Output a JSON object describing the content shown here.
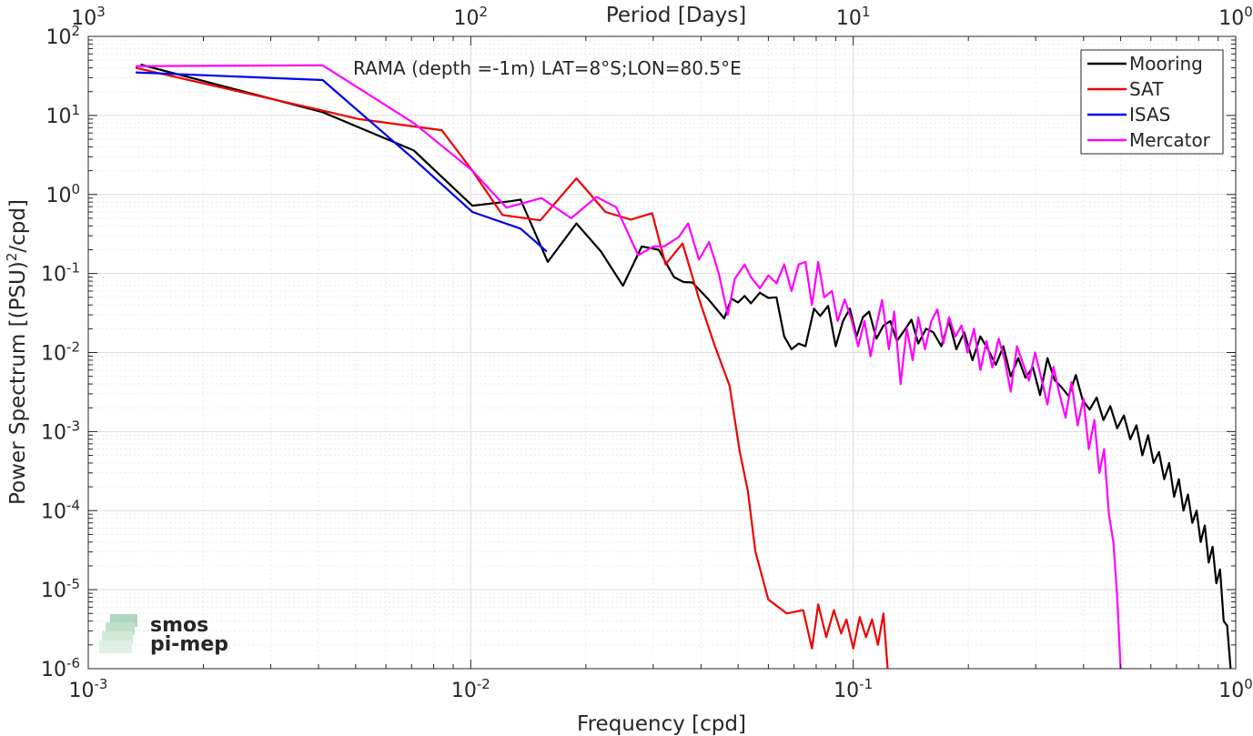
{
  "chart_data": {
    "type": "line",
    "title": "RAMA (depth =-1m) LAT=8°S;LON=80.5°E",
    "xlabel": "Frequency [cpd]",
    "ylabel": "Power Spectrum [(PSU)",
    "ylabel_sup": "2",
    "ylabel_tail": "/cpd]",
    "x2label": "Period [Days]",
    "xscale": "log",
    "yscale": "log",
    "xlim": [
      0.001,
      1
    ],
    "ylim": [
      1e-06,
      100
    ],
    "grid": true,
    "minor_grid": true,
    "legend_position": "top-right",
    "x_ticks": [
      {
        "value": 0.001,
        "base": "10",
        "exp": "-3"
      },
      {
        "value": 0.01,
        "base": "10",
        "exp": "-2"
      },
      {
        "value": 0.1,
        "base": "10",
        "exp": "-1"
      },
      {
        "value": 1,
        "base": "10",
        "exp": "0"
      }
    ],
    "y_ticks": [
      {
        "value": 1e-06,
        "base": "10",
        "exp": "-6"
      },
      {
        "value": 1e-05,
        "base": "10",
        "exp": "-5"
      },
      {
        "value": 0.0001,
        "base": "10",
        "exp": "-4"
      },
      {
        "value": 0.001,
        "base": "10",
        "exp": "-3"
      },
      {
        "value": 0.01,
        "base": "10",
        "exp": "-2"
      },
      {
        "value": 0.1,
        "base": "10",
        "exp": "-1"
      },
      {
        "value": 1,
        "base": "10",
        "exp": "0"
      },
      {
        "value": 10,
        "base": "10",
        "exp": "1"
      },
      {
        "value": 100,
        "base": "10",
        "exp": "2"
      }
    ],
    "x2_ticks": [
      {
        "value": 0.001,
        "base": "10",
        "exp": "3"
      },
      {
        "value": 0.01,
        "base": "10",
        "exp": "2"
      },
      {
        "value": 0.1,
        "base": "10",
        "exp": "1"
      },
      {
        "value": 1,
        "base": "10",
        "exp": "0"
      }
    ],
    "series": [
      {
        "name": "Mooring",
        "color": "#000000",
        "points": [
          [
            0.00137,
            44
          ],
          [
            0.0041,
            11
          ],
          [
            0.0071,
            3.6
          ],
          [
            0.0101,
            0.72
          ],
          [
            0.0127,
            0.82
          ],
          [
            0.0135,
            0.86
          ],
          [
            0.0159,
            0.14
          ],
          [
            0.0189,
            0.43
          ],
          [
            0.0219,
            0.19
          ],
          [
            0.025,
            0.07
          ],
          [
            0.028,
            0.22
          ],
          [
            0.031,
            0.2
          ],
          [
            0.034,
            0.09
          ],
          [
            0.036,
            0.078
          ],
          [
            0.038,
            0.077
          ],
          [
            0.042,
            0.046
          ],
          [
            0.046,
            0.027
          ],
          [
            0.048,
            0.048
          ],
          [
            0.05,
            0.043
          ],
          [
            0.052,
            0.052
          ],
          [
            0.054,
            0.042
          ],
          [
            0.057,
            0.057
          ],
          [
            0.06,
            0.049
          ],
          [
            0.063,
            0.05
          ],
          [
            0.066,
            0.016
          ],
          [
            0.069,
            0.011
          ],
          [
            0.072,
            0.013
          ],
          [
            0.075,
            0.012
          ],
          [
            0.079,
            0.036
          ],
          [
            0.082,
            0.029
          ],
          [
            0.086,
            0.039
          ],
          [
            0.09,
            0.012
          ],
          [
            0.094,
            0.025
          ],
          [
            0.098,
            0.036
          ],
          [
            0.102,
            0.016
          ],
          [
            0.106,
            0.028
          ],
          [
            0.11,
            0.033
          ],
          [
            0.115,
            0.015
          ],
          [
            0.12,
            0.022
          ],
          [
            0.125,
            0.025
          ],
          [
            0.13,
            0.014
          ],
          [
            0.136,
            0.019
          ],
          [
            0.142,
            0.026
          ],
          [
            0.148,
            0.013
          ],
          [
            0.155,
            0.02
          ],
          [
            0.162,
            0.018
          ],
          [
            0.17,
            0.012
          ],
          [
            0.178,
            0.025
          ],
          [
            0.186,
            0.011
          ],
          [
            0.195,
            0.018
          ],
          [
            0.205,
            0.008
          ],
          [
            0.215,
            0.016
          ],
          [
            0.225,
            0.011
          ],
          [
            0.236,
            0.007
          ],
          [
            0.247,
            0.012
          ],
          [
            0.258,
            0.005
          ],
          [
            0.27,
            0.0085
          ],
          [
            0.282,
            0.0048
          ],
          [
            0.295,
            0.0065
          ],
          [
            0.308,
            0.0029
          ],
          [
            0.322,
            0.0085
          ],
          [
            0.336,
            0.0045
          ],
          [
            0.351,
            0.0036
          ],
          [
            0.366,
            0.0028
          ],
          [
            0.382,
            0.0052
          ],
          [
            0.398,
            0.0025
          ],
          [
            0.415,
            0.0019
          ],
          [
            0.433,
            0.0027
          ],
          [
            0.451,
            0.0014
          ],
          [
            0.47,
            0.0021
          ],
          [
            0.49,
            0.0011
          ],
          [
            0.51,
            0.0016
          ],
          [
            0.53,
            0.0008
          ],
          [
            0.55,
            0.0012
          ],
          [
            0.57,
            0.0005
          ],
          [
            0.59,
            0.0009
          ],
          [
            0.61,
            0.0004
          ],
          [
            0.63,
            0.00055
          ],
          [
            0.65,
            0.00025
          ],
          [
            0.67,
            0.0004
          ],
          [
            0.69,
            0.00015
          ],
          [
            0.71,
            0.00025
          ],
          [
            0.73,
            0.0001
          ],
          [
            0.75,
            0.00016
          ],
          [
            0.77,
            7e-05
          ],
          [
            0.79,
            0.0001
          ],
          [
            0.81,
            4e-05
          ],
          [
            0.83,
            6.5e-05
          ],
          [
            0.85,
            2.2e-05
          ],
          [
            0.87,
            3.5e-05
          ],
          [
            0.89,
            1.2e-05
          ],
          [
            0.91,
            1.8e-05
          ],
          [
            0.93,
            4e-06
          ],
          [
            0.95,
            3.5e-06
          ],
          [
            0.97,
            1e-06
          ]
        ]
      },
      {
        "name": "SAT",
        "color": "#ee0000",
        "points": [
          [
            0.00133,
            40
          ],
          [
            0.0041,
            11.5
          ],
          [
            0.0051,
            9
          ],
          [
            0.0084,
            6.5
          ],
          [
            0.0101,
            2
          ],
          [
            0.0121,
            0.55
          ],
          [
            0.0152,
            0.47
          ],
          [
            0.0189,
            1.6
          ],
          [
            0.0225,
            0.6
          ],
          [
            0.0262,
            0.48
          ],
          [
            0.0298,
            0.58
          ],
          [
            0.0323,
            0.13
          ],
          [
            0.0358,
            0.24
          ],
          [
            0.0395,
            0.048
          ],
          [
            0.0435,
            0.012
          ],
          [
            0.0475,
            0.0038
          ],
          [
            0.0505,
            0.00055
          ],
          [
            0.053,
            0.00018
          ],
          [
            0.0555,
            3e-05
          ],
          [
            0.06,
            7.5e-06
          ],
          [
            0.067,
            5e-06
          ],
          [
            0.074,
            5.5e-06
          ],
          [
            0.078,
            1.8e-06
          ],
          [
            0.081,
            6.5e-06
          ],
          [
            0.085,
            2.5e-06
          ],
          [
            0.089,
            5.5e-06
          ],
          [
            0.093,
            2.8e-06
          ],
          [
            0.096,
            4.2e-06
          ],
          [
            0.1,
            1.8e-06
          ],
          [
            0.104,
            4.5e-06
          ],
          [
            0.108,
            2.5e-06
          ],
          [
            0.112,
            4.2e-06
          ],
          [
            0.116,
            2e-06
          ],
          [
            0.12,
            5e-06
          ],
          [
            0.123,
            1e-06
          ]
        ]
      },
      {
        "name": "ISAS",
        "color": "#0000ee",
        "points": [
          [
            0.00133,
            35
          ],
          [
            0.0041,
            28
          ],
          [
            0.0071,
            2.8
          ],
          [
            0.0101,
            0.6
          ],
          [
            0.0135,
            0.37
          ],
          [
            0.0158,
            0.19
          ]
        ]
      },
      {
        "name": "Mercator",
        "color": "#ff00ff",
        "points": [
          [
            0.00133,
            42
          ],
          [
            0.0041,
            43
          ],
          [
            0.0071,
            8
          ],
          [
            0.0101,
            2
          ],
          [
            0.0124,
            0.68
          ],
          [
            0.0153,
            0.9
          ],
          [
            0.0183,
            0.5
          ],
          [
            0.0213,
            0.93
          ],
          [
            0.024,
            0.69
          ],
          [
            0.0274,
            0.17
          ],
          [
            0.03,
            0.22
          ],
          [
            0.032,
            0.22
          ],
          [
            0.035,
            0.29
          ],
          [
            0.037,
            0.43
          ],
          [
            0.0395,
            0.15
          ],
          [
            0.042,
            0.25
          ],
          [
            0.0445,
            0.1
          ],
          [
            0.047,
            0.03
          ],
          [
            0.049,
            0.085
          ],
          [
            0.052,
            0.13
          ],
          [
            0.054,
            0.09
          ],
          [
            0.057,
            0.065
          ],
          [
            0.06,
            0.095
          ],
          [
            0.063,
            0.075
          ],
          [
            0.066,
            0.13
          ],
          [
            0.069,
            0.06
          ],
          [
            0.072,
            0.13
          ],
          [
            0.075,
            0.14
          ],
          [
            0.078,
            0.04
          ],
          [
            0.081,
            0.14
          ],
          [
            0.084,
            0.05
          ],
          [
            0.088,
            0.06
          ],
          [
            0.091,
            0.025
          ],
          [
            0.095,
            0.047
          ],
          [
            0.099,
            0.026
          ],
          [
            0.103,
            0.012
          ],
          [
            0.107,
            0.025
          ],
          [
            0.111,
            0.009
          ],
          [
            0.115,
            0.022
          ],
          [
            0.119,
            0.046
          ],
          [
            0.124,
            0.011
          ],
          [
            0.128,
            0.033
          ],
          [
            0.133,
            0.004
          ],
          [
            0.138,
            0.02
          ],
          [
            0.143,
            0.008
          ],
          [
            0.148,
            0.028
          ],
          [
            0.154,
            0.011
          ],
          [
            0.16,
            0.025
          ],
          [
            0.166,
            0.035
          ],
          [
            0.172,
            0.013
          ],
          [
            0.178,
            0.028
          ],
          [
            0.185,
            0.016
          ],
          [
            0.192,
            0.022
          ],
          [
            0.199,
            0.01
          ],
          [
            0.207,
            0.02
          ],
          [
            0.215,
            0.006
          ],
          [
            0.223,
            0.014
          ],
          [
            0.231,
            0.0065
          ],
          [
            0.24,
            0.015
          ],
          [
            0.249,
            0.008
          ],
          [
            0.258,
            0.0032
          ],
          [
            0.268,
            0.012
          ],
          [
            0.278,
            0.0072
          ],
          [
            0.288,
            0.0044
          ],
          [
            0.299,
            0.01
          ],
          [
            0.31,
            0.0048
          ],
          [
            0.322,
            0.0022
          ],
          [
            0.334,
            0.0066
          ],
          [
            0.346,
            0.003
          ],
          [
            0.359,
            0.0015
          ],
          [
            0.372,
            0.0042
          ],
          [
            0.386,
            0.0012
          ],
          [
            0.4,
            0.0026
          ],
          [
            0.413,
            0.0006
          ],
          [
            0.427,
            0.0014
          ],
          [
            0.44,
            0.0003
          ],
          [
            0.453,
            0.0006
          ],
          [
            0.466,
            9e-05
          ],
          [
            0.479,
            4e-05
          ],
          [
            0.49,
            8e-06
          ],
          [
            0.5,
            1e-06
          ]
        ]
      }
    ]
  },
  "watermark": {
    "line1": "smos",
    "line2": "pi-mep"
  }
}
